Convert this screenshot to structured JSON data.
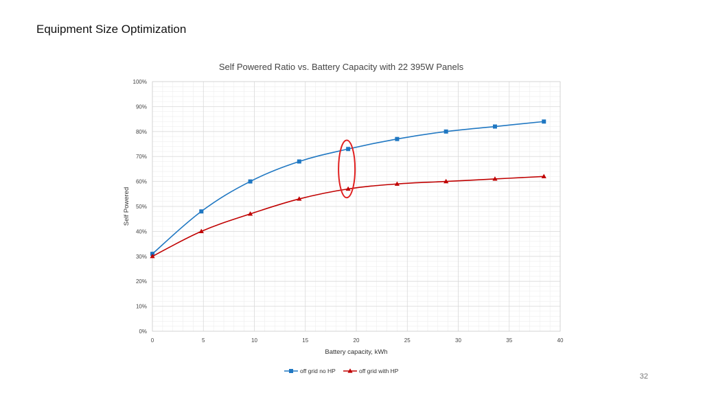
{
  "slide": {
    "title": "Equipment Size Optimization",
    "page_number": "32"
  },
  "colors": {
    "series_1": "#1f77c2",
    "series_2": "#c00000",
    "highlight": "#e02020",
    "grid_major": "#d9d9d9",
    "grid_minor": "#eeeeee"
  },
  "chart_data": {
    "type": "line",
    "title": "Self Powered Ratio vs. Battery Capacity with 22 395W Panels",
    "xlabel": "Battery capacity, kWh",
    "ylabel": "Self Powered",
    "xlim": [
      0,
      40
    ],
    "ylim": [
      0,
      1
    ],
    "xticks": [
      0,
      5,
      10,
      15,
      20,
      25,
      30,
      35,
      40
    ],
    "yticks": [
      0,
      0.1,
      0.2,
      0.3,
      0.4,
      0.5,
      0.6,
      0.7,
      0.8,
      0.9,
      1.0
    ],
    "ytick_labels": [
      "0%",
      "10%",
      "20%",
      "30%",
      "40%",
      "50%",
      "60%",
      "70%",
      "80%",
      "90%",
      "100%"
    ],
    "grid": true,
    "legend_position": "bottom-center",
    "series": [
      {
        "name": "off grid no HP",
        "marker": "square",
        "x": [
          0,
          4.8,
          9.6,
          14.4,
          19.2,
          24,
          28.8,
          33.6,
          38.4
        ],
        "values": [
          0.31,
          0.48,
          0.6,
          0.68,
          0.73,
          0.77,
          0.8,
          0.82,
          0.84
        ]
      },
      {
        "name": "off grid with HP",
        "marker": "triangle",
        "x": [
          0,
          4.8,
          9.6,
          14.4,
          19.2,
          24,
          28.8,
          33.6,
          38.4
        ],
        "values": [
          0.3,
          0.4,
          0.47,
          0.53,
          0.57,
          0.59,
          0.6,
          0.61,
          0.62
        ]
      }
    ],
    "annotation": {
      "type": "ellipse-highlight",
      "x": 19.2,
      "y_center": 0.65,
      "y_span": [
        0.535,
        0.765
      ]
    }
  }
}
